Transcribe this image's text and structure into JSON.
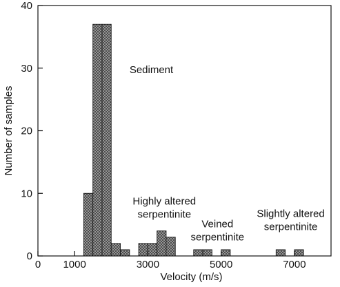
{
  "chart_data": {
    "type": "bar",
    "xlabel": "Velocity (m/s)",
    "ylabel": "Number of samples",
    "xlim": [
      0,
      8000
    ],
    "ylim": [
      0,
      40
    ],
    "x_ticks": [
      0,
      1000,
      3000,
      5000,
      7000
    ],
    "x_tick_labels": [
      "0",
      "1000",
      "3000",
      "5000",
      "7000"
    ],
    "y_ticks": [
      0,
      10,
      20,
      30,
      40
    ],
    "y_tick_labels": [
      "0",
      "10",
      "20",
      "30",
      "40"
    ],
    "bin_width": 250,
    "bins": [
      {
        "x0": 1250,
        "x1": 1500,
        "count": 10
      },
      {
        "x0": 1500,
        "x1": 1750,
        "count": 37
      },
      {
        "x0": 1750,
        "x1": 2000,
        "count": 37
      },
      {
        "x0": 2000,
        "x1": 2250,
        "count": 2
      },
      {
        "x0": 2250,
        "x1": 2500,
        "count": 1
      },
      {
        "x0": 2750,
        "x1": 3000,
        "count": 2
      },
      {
        "x0": 3000,
        "x1": 3250,
        "count": 2
      },
      {
        "x0": 3250,
        "x1": 3500,
        "count": 4
      },
      {
        "x0": 3500,
        "x1": 3750,
        "count": 3
      },
      {
        "x0": 4250,
        "x1": 4500,
        "count": 1
      },
      {
        "x0": 4500,
        "x1": 4750,
        "count": 1
      },
      {
        "x0": 5000,
        "x1": 5250,
        "count": 1
      },
      {
        "x0": 6500,
        "x1": 6750,
        "count": 1
      },
      {
        "x0": 7000,
        "x1": 7250,
        "count": 1
      }
    ],
    "annotations": [
      {
        "lines": [
          "Sediment"
        ],
        "x": 2500,
        "y": 29.2,
        "anchor": "start"
      },
      {
        "lines": [
          "Highly altered",
          "serpentinite"
        ],
        "x": 3450,
        "y": 8.2,
        "anchor": "middle"
      },
      {
        "lines": [
          "Veined",
          "serpentinite"
        ],
        "x": 4900,
        "y": 4.6,
        "anchor": "middle"
      },
      {
        "lines": [
          "Slightly altered",
          "serpentinite"
        ],
        "x": 6900,
        "y": 6.2,
        "anchor": "middle"
      }
    ],
    "grid": false,
    "bar_fill": "crosshatch",
    "colors": {
      "bar_base": "#9a9a9a",
      "hatch": "#3a3a3a",
      "edge": "#1a1a1a"
    }
  }
}
